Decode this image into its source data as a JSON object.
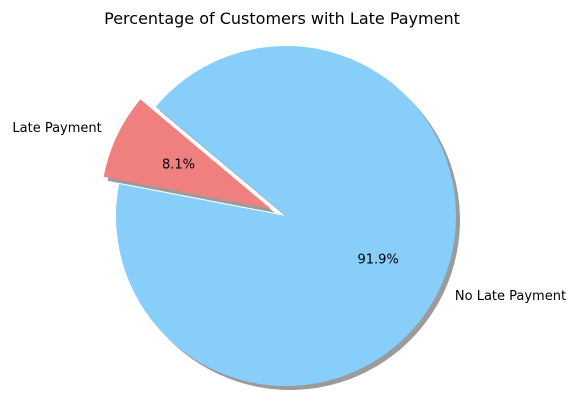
{
  "chart_data": {
    "type": "pie",
    "title": "Percentage of Customers with Late Payment",
    "labels": [
      "Late Payment",
      "No Late Payment"
    ],
    "values": [
      8.1,
      91.9
    ],
    "value_labels": [
      "8.1%",
      "91.9%"
    ],
    "colors": [
      "#f08080",
      "#87cefa"
    ],
    "exploded": [
      "Late Payment"
    ],
    "shadow": true,
    "legend": "none",
    "grid": false
  }
}
